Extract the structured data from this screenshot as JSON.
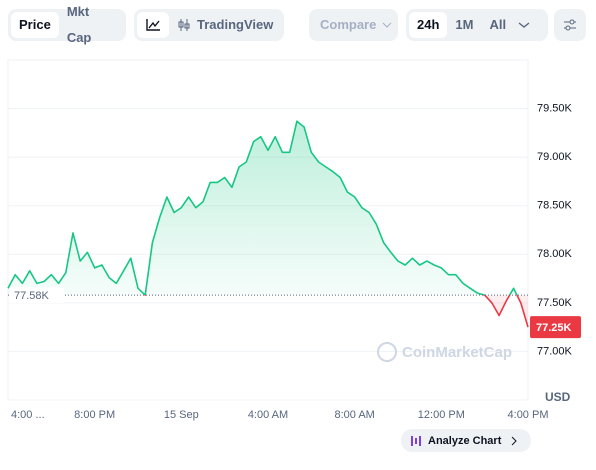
{
  "toolbar": {
    "price": "Price",
    "mkt_cap": "Mkt Cap",
    "tradingview": "TradingView",
    "compare": "Compare",
    "range_24h": "24h",
    "range_1m": "1M",
    "range_all": "All"
  },
  "watermark": "CoinMarketCap",
  "analyze": "Analyze Chart",
  "chart_data": {
    "type": "line",
    "currency": "USD",
    "categories": [
      "4:00 ...",
      null,
      null,
      null,
      null,
      null,
      null,
      null,
      null,
      null,
      null,
      null,
      "8:00 PM",
      null,
      null,
      null,
      null,
      null,
      null,
      null,
      null,
      null,
      null,
      null,
      "15 Sep",
      null,
      null,
      null,
      null,
      null,
      null,
      null,
      null,
      null,
      null,
      null,
      "4:00 AM",
      null,
      null,
      null,
      null,
      null,
      null,
      null,
      null,
      null,
      null,
      null,
      "8:00 AM",
      null,
      null,
      null,
      null,
      null,
      null,
      null,
      null,
      null,
      null,
      null,
      "12:00 PM",
      null,
      null,
      null,
      null,
      null,
      null,
      null,
      null,
      null,
      null,
      null,
      "4:00 PM"
    ],
    "series": [
      {
        "name": "Price",
        "color": "#16c784",
        "below_color": "#ea3943",
        "values": [
          77650,
          77790,
          77700,
          77830,
          77700,
          77720,
          77790,
          77700,
          77810,
          78220,
          77930,
          78020,
          77860,
          77890,
          77760,
          77700,
          77830,
          77960,
          77650,
          77580,
          78120,
          78380,
          78590,
          78430,
          78480,
          78590,
          78480,
          78540,
          78740,
          78740,
          78790,
          78690,
          78900,
          78950,
          79160,
          79210,
          79070,
          79210,
          79050,
          79050,
          79370,
          79310,
          79050,
          78950,
          78900,
          78850,
          78790,
          78640,
          78590,
          78480,
          78430,
          78310,
          78120,
          78020,
          77930,
          77890,
          77960,
          77890,
          77930,
          77890,
          77860,
          77790,
          77790,
          77700,
          77650,
          77600,
          77580,
          77500,
          77370,
          77520,
          77650,
          77500,
          77250
        ]
      }
    ],
    "baseline": {
      "value": 77580,
      "label": "77.58K"
    },
    "current": {
      "value": 77250,
      "label": "77.25K"
    },
    "ylim": [
      76500,
      80000
    ],
    "yticks": [
      {
        "value": 77000,
        "label": "77.00K"
      },
      {
        "value": 77500,
        "label": "77.50K"
      },
      {
        "value": 78000,
        "label": "78.00K"
      },
      {
        "value": 78500,
        "label": "78.50K"
      },
      {
        "value": 79000,
        "label": "79.00K"
      },
      {
        "value": 79500,
        "label": "79.50K"
      }
    ],
    "grid": true
  }
}
